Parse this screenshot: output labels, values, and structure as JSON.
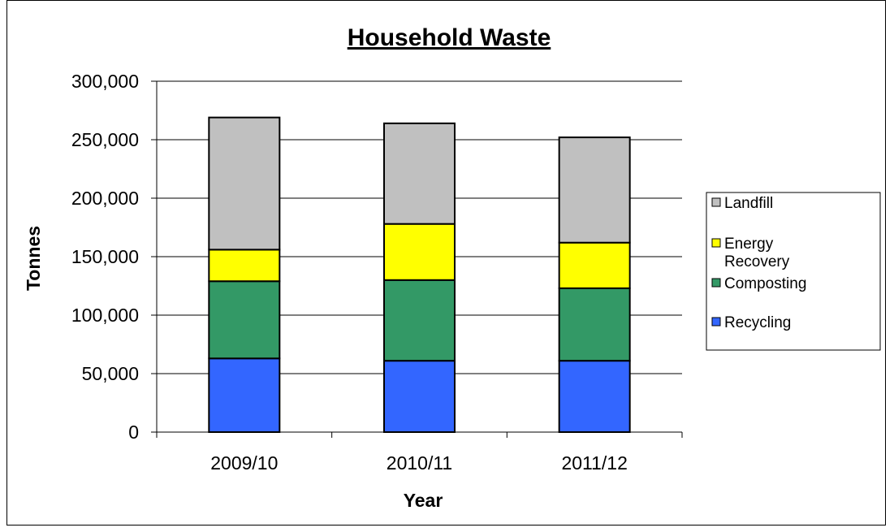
{
  "chart_data": {
    "type": "bar",
    "stacked": true,
    "title": "Household Waste",
    "xlabel": "Year",
    "ylabel": "Tonnes",
    "categories": [
      "2009/10",
      "2010/11",
      "2011/12"
    ],
    "ylim": [
      0,
      300000
    ],
    "yticks": [
      0,
      50000,
      100000,
      150000,
      200000,
      250000,
      300000
    ],
    "ytick_labels": [
      "0",
      "50,000",
      "100,000",
      "150,000",
      "200,000",
      "250,000",
      "300,000"
    ],
    "grid": true,
    "legend_position": "right",
    "series": [
      {
        "name": "Recycling",
        "color": "#3366ff",
        "values": [
          63000,
          61000,
          61000
        ]
      },
      {
        "name": "Composting",
        "color": "#339966",
        "values": [
          66000,
          69000,
          62000
        ]
      },
      {
        "name": "Energy Recovery",
        "color": "#ffff00",
        "values": [
          27000,
          48000,
          39000
        ]
      },
      {
        "name": "Landfill",
        "color": "#c0c0c0",
        "values": [
          113000,
          86000,
          90000
        ]
      }
    ],
    "legend_order": [
      "Landfill",
      "Energy Recovery",
      "Composting",
      "Recycling"
    ]
  }
}
